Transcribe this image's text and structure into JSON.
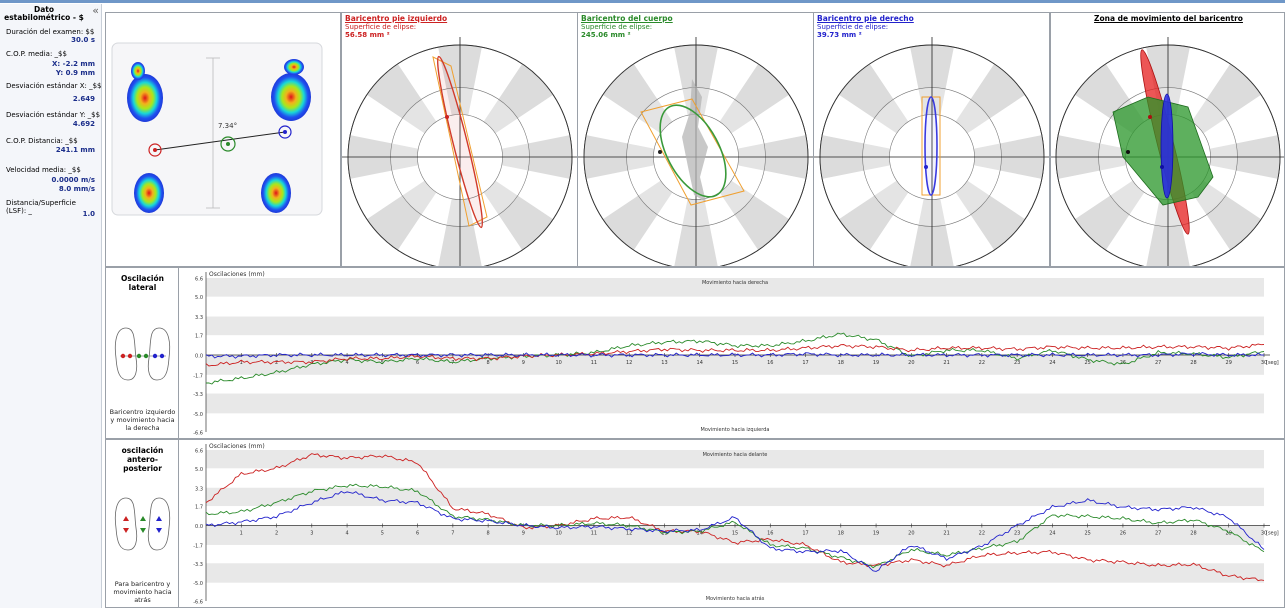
{
  "stats": {
    "title": "Dato estabilométrico - $",
    "exam_duration_label": "Duración del examen: $$",
    "exam_duration_value": "30.0 s",
    "cop_mean_label": "C.O.P. media: _$$",
    "cop_mean_x": "X: -2.2 mm",
    "cop_mean_y": "Y:  0.9 mm",
    "std_x_label": "Desviación estándar X: _$$",
    "std_x_value": "2.649",
    "std_y_label": "Desviación estándar Y: _$$",
    "std_y_value": "4.692",
    "cop_distance_label": "C.O.P. Distancia: _$$",
    "cop_distance_value": "241.1 mm",
    "mean_speed_label": "Velocidad media: _$$",
    "mean_speed_value_1": "0.0000 m/s",
    "mean_speed_value_2": "8.0 mm/s",
    "distance_surface_label_1": "Distancia/Superficie",
    "distance_surface_label_2": "(LSF): _",
    "distance_surface_value": "1.0"
  },
  "footmap": {
    "angle_label": "7.34°"
  },
  "ellipses": [
    {
      "title": "Baricentro pie izquierdo",
      "subtitle": "Superficie de elipse:",
      "value": "56.58 mm ²",
      "color": "#cc2222"
    },
    {
      "title": "Baricentro del cuerpo",
      "subtitle": "Superficie de elipse:",
      "value": "245.06 mm ²",
      "color": "#2a8a2a"
    },
    {
      "title": "Baricentro pie derecho",
      "subtitle": "Superficie de elipse:",
      "value": "39.73 mm ²",
      "color": "#2222cc"
    },
    {
      "title": "Zona de movimiento del baricentro",
      "subtitle": "",
      "value": "",
      "color": "#000000"
    }
  ],
  "lateral": {
    "title": "Oscilación lateral",
    "note": "Baricentro izquierdo y movimiento hacia la derecha",
    "y_label": "Oscilaciones (mm)",
    "top_label": "Movimiento hacia derecha",
    "bottom_label": "Movimiento hacia izquierda",
    "y_ticks": [
      "6.6",
      "5.0",
      "3.3",
      "1.7",
      "0.0",
      "-1.7",
      "-3.3",
      "-5.0",
      "-6.6"
    ],
    "x_unit": "[seg]"
  },
  "antero": {
    "title": "oscilación antero-posterior",
    "note": "Para baricentro y movimiento hacia atrás",
    "y_label": "Oscilaciones (mm)",
    "top_label": "Movimiento hacia delante",
    "bottom_label": "Movimiento hacia atrás",
    "y_ticks": [
      "6.6",
      "5.0",
      "3.3",
      "1.7",
      "0.0",
      "-1.7",
      "-3.3",
      "-5.0",
      "-6.6"
    ],
    "x_unit": "[seg]"
  },
  "x_ticks": [
    "1",
    "2",
    "3",
    "4",
    "5",
    "6",
    "7",
    "8",
    "9",
    "10",
    "11",
    "12",
    "13",
    "14",
    "15",
    "16",
    "17",
    "18",
    "19",
    "20",
    "21",
    "22",
    "23",
    "24",
    "25",
    "26",
    "27",
    "28",
    "29",
    "30"
  ],
  "chart_data": [
    {
      "type": "line",
      "title": "",
      "xlabel": "[seg]",
      "ylabel": "Oscilaciones (mm)",
      "xlim": [
        0,
        30
      ],
      "ylim": [
        -6.6,
        6.6
      ],
      "x": [
        0,
        1,
        2,
        3,
        4,
        5,
        6,
        7,
        8,
        9,
        10,
        11,
        12,
        13,
        14,
        15,
        16,
        17,
        18,
        19,
        20,
        21,
        22,
        23,
        24,
        25,
        26,
        27,
        28,
        29,
        30
      ],
      "series": [
        {
          "color": "#2a8a2a",
          "values": [
            -2.4,
            -2.0,
            -1.5,
            -0.8,
            -0.4,
            -0.6,
            -0.3,
            -0.6,
            -0.3,
            -0.1,
            0.0,
            0.2,
            0.8,
            1.1,
            1.2,
            0.8,
            0.8,
            1.2,
            1.8,
            1.3,
            -0.1,
            0.4,
            0.4,
            -0.3,
            0.4,
            -0.4,
            -0.8,
            0.2,
            0.1,
            -0.2,
            0.3
          ]
        },
        {
          "color": "#cc2222",
          "values": [
            -0.9,
            -0.6,
            -0.6,
            -0.6,
            -0.3,
            -0.3,
            -0.1,
            -0.3,
            -0.3,
            -0.1,
            0.0,
            0.1,
            0.3,
            0.5,
            0.4,
            0.4,
            0.4,
            0.6,
            0.8,
            0.7,
            0.4,
            0.6,
            0.6,
            0.5,
            0.7,
            0.6,
            0.6,
            0.7,
            0.7,
            0.6,
            0.9
          ]
        },
        {
          "color": "#2222cc",
          "values": [
            -0.1,
            -0.1,
            0.0,
            0.0,
            0.0,
            0.0,
            0.0,
            0.0,
            0.0,
            0.0,
            0.0,
            0.0,
            0.0,
            0.0,
            0.0,
            0.0,
            0.0,
            0.1,
            0.0,
            0.0,
            0.0,
            0.0,
            0.0,
            0.0,
            0.0,
            0.0,
            0.0,
            0.0,
            0.1,
            0.0,
            0.0
          ]
        }
      ]
    },
    {
      "type": "line",
      "title": "",
      "xlabel": "[seg]",
      "ylabel": "Oscilaciones (mm)",
      "xlim": [
        0,
        30
      ],
      "ylim": [
        -6.6,
        6.6
      ],
      "x": [
        0,
        1,
        2,
        3,
        4,
        5,
        6,
        7,
        8,
        9,
        10,
        11,
        12,
        13,
        14,
        15,
        16,
        17,
        18,
        19,
        20,
        21,
        22,
        23,
        24,
        25,
        26,
        27,
        28,
        29,
        30
      ],
      "series": [
        {
          "color": "#cc2222",
          "values": [
            2.0,
            4.5,
            5.0,
            6.2,
            5.9,
            6.1,
            5.5,
            1.5,
            1.0,
            -0.2,
            0.0,
            0.6,
            0.7,
            -0.5,
            -0.5,
            -1.5,
            -1.2,
            -1.7,
            -3.2,
            -3.5,
            -3.0,
            -3.5,
            -2.6,
            -2.4,
            -2.3,
            -3.0,
            -3.2,
            -3.5,
            -3.4,
            -4.4,
            -4.8
          ]
        },
        {
          "color": "#2a8a2a",
          "values": [
            1.0,
            1.2,
            2.0,
            3.0,
            3.5,
            3.4,
            3.0,
            0.8,
            0.5,
            0.0,
            0.0,
            0.2,
            0.0,
            -0.6,
            -0.5,
            0.3,
            -1.7,
            -2.0,
            -2.8,
            -3.6,
            -2.1,
            -2.6,
            -2.0,
            -1.4,
            0.9,
            0.8,
            0.6,
            0.2,
            0.5,
            -0.5,
            -2.3
          ]
        },
        {
          "color": "#2222cc",
          "values": [
            0.0,
            0.3,
            0.8,
            2.0,
            3.0,
            2.2,
            2.0,
            0.6,
            0.4,
            0.0,
            -0.2,
            -0.1,
            -0.3,
            -0.5,
            -0.4,
            0.7,
            -2.0,
            -2.3,
            -2.2,
            -4.0,
            -1.7,
            -2.9,
            -1.8,
            0.0,
            1.6,
            2.2,
            1.6,
            1.4,
            1.6,
            0.7,
            -2.1
          ]
        }
      ]
    }
  ]
}
